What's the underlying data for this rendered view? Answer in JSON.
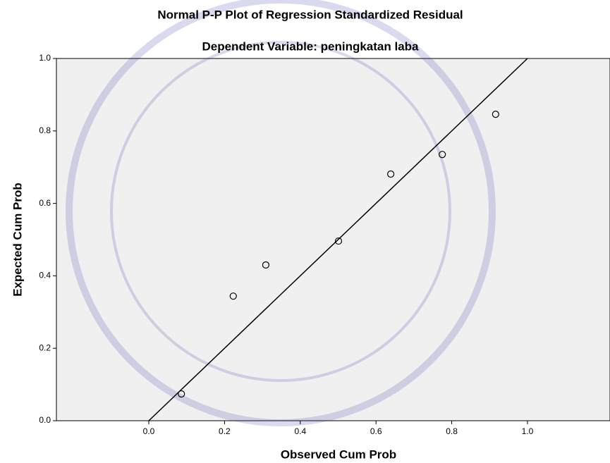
{
  "chart_data": {
    "type": "scatter",
    "title": "Normal P-P Plot of Regression Standardized Residual",
    "subtitle": "Dependent Variable: peningkatan laba",
    "x_label": "Observed Cum Prob",
    "y_label": "Expected Cum Prob",
    "x": [
      0.086,
      0.223,
      0.309,
      0.501,
      0.639,
      0.775,
      0.916
    ],
    "values": [
      0.074,
      0.344,
      0.43,
      0.496,
      0.681,
      0.735,
      0.846
    ],
    "color": "#000000",
    "xlim": [
      -0.244,
      1.218
    ],
    "ylim": [
      0,
      1
    ],
    "xticks": [
      {
        "value": 0,
        "label": "0.0"
      },
      {
        "value": 0.2,
        "label": "0.2"
      },
      {
        "value": 0.4,
        "label": "0.4"
      },
      {
        "value": 0.6,
        "label": "0.6"
      },
      {
        "value": 0.8,
        "label": "0.8"
      },
      {
        "value": 1,
        "label": "1.0"
      }
    ],
    "yticks": [
      {
        "value": 0,
        "label": "0.0"
      },
      {
        "value": 0.2,
        "label": "0.2"
      },
      {
        "value": 0.4,
        "label": "0.4"
      },
      {
        "value": 0.6,
        "label": "0.6"
      },
      {
        "value": 0.8,
        "label": "0.8"
      },
      {
        "value": 1,
        "label": "1.0"
      }
    ],
    "reference_line": true
  }
}
